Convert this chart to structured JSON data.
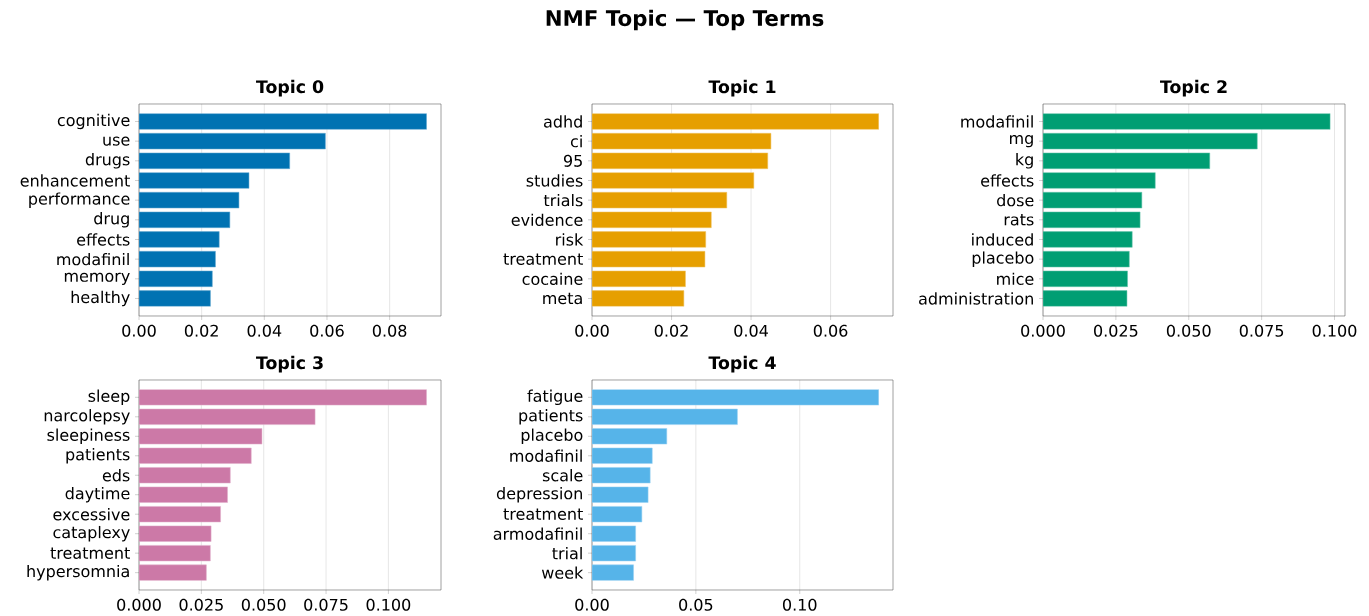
{
  "chart_data": [
    {
      "type": "bar",
      "orientation": "horizontal",
      "title": "Topic 0",
      "annotations": [
        "NMF Topic — Top Terms"
      ],
      "color": "#0072b2",
      "grid": "x",
      "xlim": [
        0,
        0.0964
      ],
      "xticks": [
        {
          "value": 0,
          "label": "0.00"
        },
        {
          "value": 0.02,
          "label": "0.02"
        },
        {
          "value": 0.04,
          "label": "0.04"
        },
        {
          "value": 0.06,
          "label": "0.06"
        },
        {
          "value": 0.08,
          "label": "0.08"
        }
      ],
      "categories": [
        "cognitive",
        "use",
        "drugs",
        "enhancement",
        "performance",
        "drug",
        "effects",
        "modafinil",
        "memory",
        "healthy"
      ],
      "values": [
        0.0918,
        0.0595,
        0.0481,
        0.0351,
        0.0319,
        0.029,
        0.0256,
        0.0244,
        0.0234,
        0.0228
      ]
    },
    {
      "type": "bar",
      "orientation": "horizontal",
      "title": "Topic 1",
      "color": "#e69f00",
      "grid": "x",
      "xlim": [
        0,
        0.0757
      ],
      "xticks": [
        {
          "value": 0,
          "label": "0.00"
        },
        {
          "value": 0.02,
          "label": "0.02"
        },
        {
          "value": 0.04,
          "label": "0.04"
        },
        {
          "value": 0.06,
          "label": "0.06"
        }
      ],
      "categories": [
        "adhd",
        "ci",
        "95",
        "studies",
        "trials",
        "evidence",
        "risk",
        "treatment",
        "cocaine",
        "meta"
      ],
      "values": [
        0.0721,
        0.045,
        0.0442,
        0.0407,
        0.0339,
        0.03,
        0.0286,
        0.0284,
        0.0235,
        0.0231
      ]
    },
    {
      "type": "bar",
      "orientation": "horizontal",
      "title": "Topic 2",
      "color": "#009e73",
      "grid": "x",
      "xlim": [
        0,
        0.1036
      ],
      "xticks": [
        {
          "value": 0,
          "label": "0.000"
        },
        {
          "value": 0.025,
          "label": "0.025"
        },
        {
          "value": 0.05,
          "label": "0.050"
        },
        {
          "value": 0.075,
          "label": "0.075"
        },
        {
          "value": 0.1,
          "label": "0.100"
        }
      ],
      "categories": [
        "modafinil",
        "mg",
        "kg",
        "effects",
        "dose",
        "rats",
        "induced",
        "placebo",
        "mice",
        "administration"
      ],
      "values": [
        0.0985,
        0.0735,
        0.0572,
        0.0385,
        0.0339,
        0.0333,
        0.0306,
        0.0296,
        0.029,
        0.0288
      ]
    },
    {
      "type": "bar",
      "orientation": "horizontal",
      "title": "Topic 3",
      "color": "#cc79a7",
      "grid": "x",
      "xlim": [
        0,
        0.1211
      ],
      "xticks": [
        {
          "value": 0,
          "label": "0.000"
        },
        {
          "value": 0.025,
          "label": "0.025"
        },
        {
          "value": 0.05,
          "label": "0.050"
        },
        {
          "value": 0.075,
          "label": "0.075"
        },
        {
          "value": 0.1,
          "label": "0.100"
        }
      ],
      "categories": [
        "sleep",
        "narcolepsy",
        "sleepiness",
        "patients",
        "eds",
        "daytime",
        "excessive",
        "cataplexy",
        "treatment",
        "hypersomnia"
      ],
      "values": [
        0.1153,
        0.0706,
        0.0493,
        0.045,
        0.0366,
        0.0355,
        0.0327,
        0.0289,
        0.0286,
        0.027
      ]
    },
    {
      "type": "bar",
      "orientation": "horizontal",
      "title": "Topic 4",
      "color": "#56b4e9",
      "grid": "x",
      "xlim": [
        0,
        0.1449
      ],
      "xticks": [
        {
          "value": 0,
          "label": "0.00"
        },
        {
          "value": 0.05,
          "label": "0.05"
        },
        {
          "value": 0.1,
          "label": "0.10"
        }
      ],
      "categories": [
        "fatigue",
        "patients",
        "placebo",
        "modafinil",
        "scale",
        "depression",
        "treatment",
        "armodafinil",
        "trial",
        "week"
      ],
      "values": [
        0.138,
        0.07,
        0.036,
        0.029,
        0.028,
        0.027,
        0.024,
        0.021,
        0.021,
        0.02
      ]
    }
  ]
}
